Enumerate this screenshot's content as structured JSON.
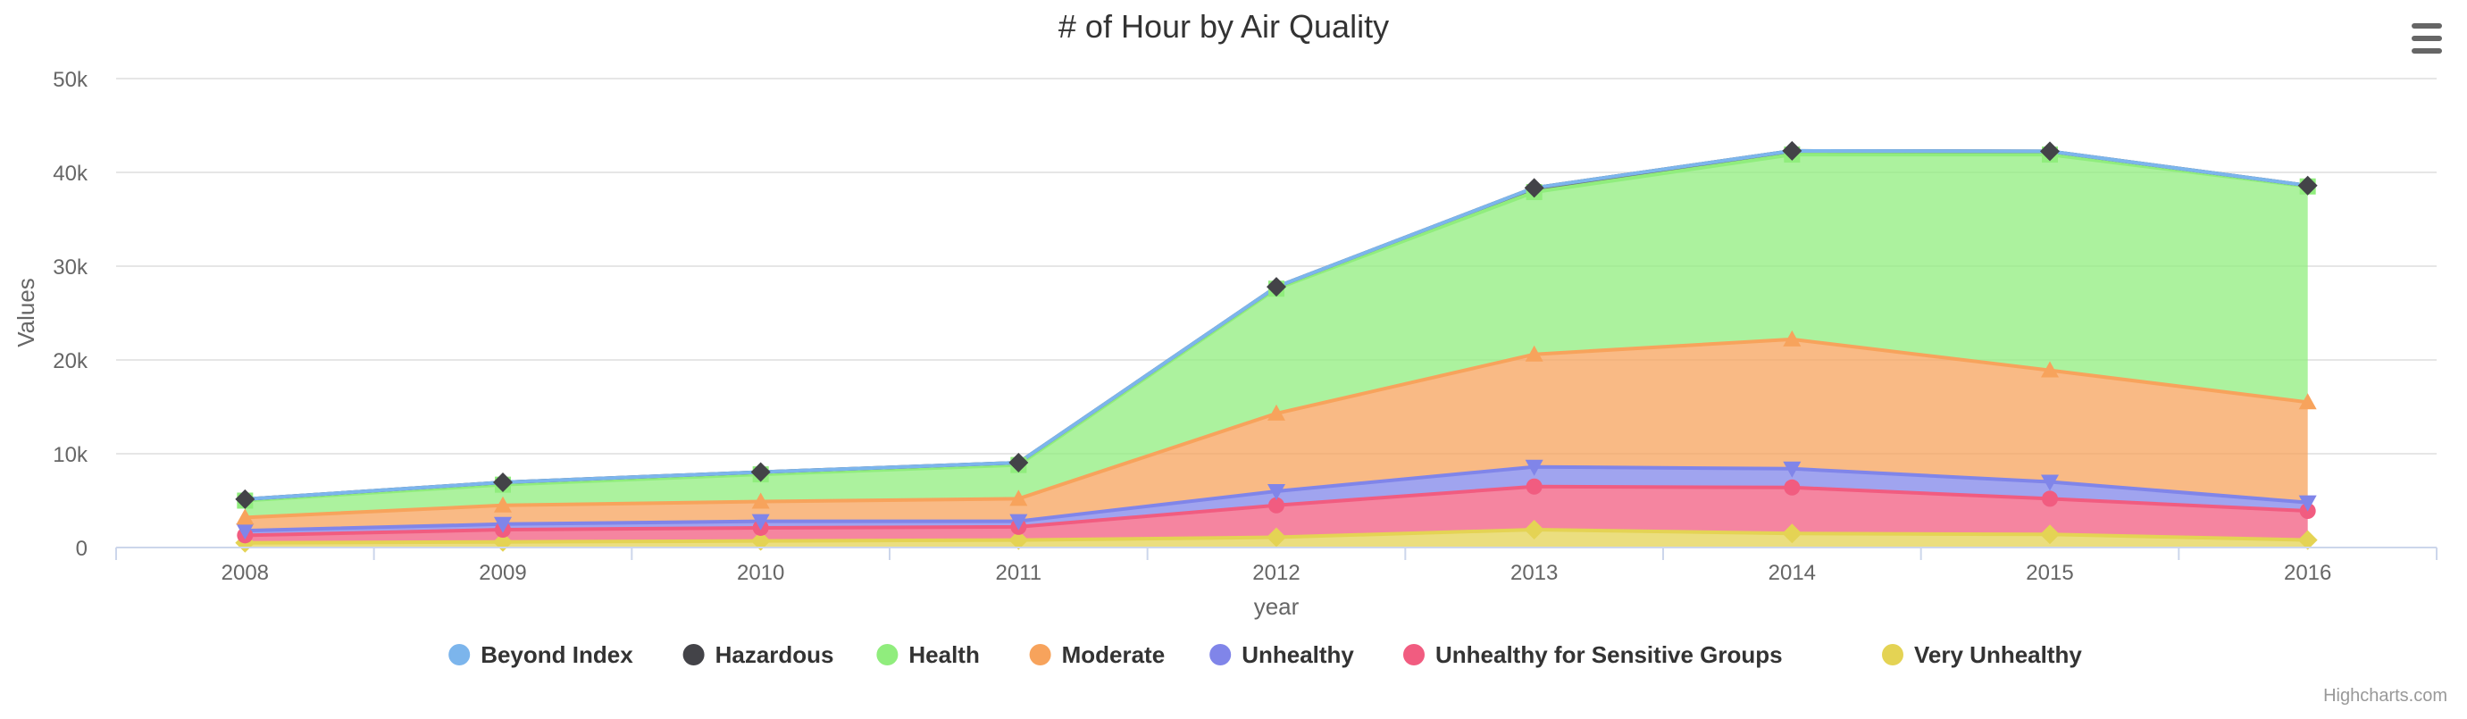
{
  "chart_data": {
    "type": "area",
    "stacked": true,
    "title": "# of Hour by Air Quality",
    "xlabel": "year",
    "ylabel": "Values",
    "categories": [
      "2008",
      "2009",
      "2010",
      "2011",
      "2012",
      "2013",
      "2014",
      "2015",
      "2016"
    ],
    "ylim": [
      0,
      50000
    ],
    "yticks": [
      {
        "value": 0,
        "label": "0"
      },
      {
        "value": 10000,
        "label": "10k"
      },
      {
        "value": 20000,
        "label": "20k"
      },
      {
        "value": 30000,
        "label": "30k"
      },
      {
        "value": 40000,
        "label": "40k"
      },
      {
        "value": 50000,
        "label": "50k"
      }
    ],
    "grid": true,
    "legend_position": "bottom-center",
    "credits": "Highcharts.com",
    "series": [
      {
        "name": "Beyond Index",
        "color": "#7cb5ec",
        "marker": "circle",
        "values": [
          0,
          0,
          0,
          0,
          0,
          0,
          0,
          0,
          0
        ]
      },
      {
        "name": "Hazardous",
        "color": "#434348",
        "marker": "diamond",
        "values": [
          150,
          250,
          250,
          250,
          200,
          450,
          400,
          350,
          100
        ]
      },
      {
        "name": "Health",
        "color": "#90ed7d",
        "marker": "square",
        "values": [
          1800,
          2200,
          2900,
          3600,
          13300,
          17300,
          19700,
          23000,
          23000
        ]
      },
      {
        "name": "Moderate",
        "color": "#f7a35c",
        "marker": "triangle",
        "values": [
          1400,
          2000,
          2100,
          2400,
          8300,
          12000,
          13800,
          11900,
          10700
        ]
      },
      {
        "name": "Unhealthy",
        "color": "#8085e9",
        "marker": "triangle-down",
        "values": [
          500,
          600,
          700,
          600,
          1500,
          2100,
          2000,
          1800,
          900
        ]
      },
      {
        "name": "Unhealthy for Sensitive Groups",
        "color": "#f15c80",
        "marker": "circle",
        "values": [
          800,
          1300,
          1400,
          1400,
          3400,
          4600,
          4900,
          3800,
          3100
        ]
      },
      {
        "name": "Very Unhealthy",
        "color": "#e4d354",
        "marker": "diamond",
        "values": [
          500,
          600,
          700,
          800,
          1100,
          1900,
          1500,
          1400,
          800
        ]
      }
    ]
  },
  "toolbar": {
    "menu_icon": "hamburger-menu-icon"
  }
}
